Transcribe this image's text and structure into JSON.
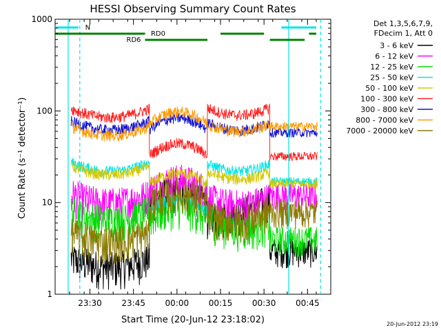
{
  "chart_data": {
    "type": "line",
    "title": "HESSI Observing Summary Count Rates",
    "xlabel": "Start Time (20-Jun-12 23:18:02)",
    "ylabel": "Count Rate (s⁻¹ detector⁻¹)",
    "yscale": "log",
    "ylim": [
      1,
      1000
    ],
    "x_unit": "minutes after 23:18:02",
    "xlim": [
      0,
      95
    ],
    "x_tick_labels": [
      "23:30",
      "23:45",
      "00:00",
      "00:15",
      "00:30",
      "00:45"
    ],
    "x_tick_values": [
      12,
      27,
      42,
      57,
      72,
      87
    ],
    "y_tick_labels": [
      "1",
      "10",
      "100",
      "1000"
    ],
    "y_tick_values": [
      1,
      10,
      100,
      1000
    ],
    "grid": false,
    "legend_placement": "right",
    "legend_header": [
      "Det 1,3,5,6,7,9,",
      "FDecim 1, Att 0"
    ],
    "timestamp": "20-Jun-2012 23:19",
    "segments": [
      [
        5.5,
        32.5
      ],
      [
        32.5,
        52.5
      ],
      [
        52.5,
        74
      ],
      [
        74,
        90.5
      ]
    ],
    "series": [
      {
        "name": "3 - 6 keV",
        "color": "#000000",
        "values": [
          2,
          2,
          13.5,
          6,
          9.5,
          3
        ]
      },
      {
        "name": "6 - 12 keV",
        "color": "#ff00ff",
        "values": [
          10,
          10,
          18,
          9.5,
          9.5,
          12
        ]
      },
      {
        "name": "12 - 25 keV",
        "color": "#00dd00",
        "values": [
          6.5,
          6.5,
          9,
          5.5,
          5,
          4
        ]
      },
      {
        "name": "25 - 50 keV",
        "color": "#00e5e5",
        "values": [
          22,
          22,
          11,
          22,
          22,
          17
        ]
      },
      {
        "name": "50 - 100 keV",
        "color": "#d4c800",
        "values": [
          20,
          20,
          21,
          18,
          18,
          16
        ]
      },
      {
        "name": "100 - 300 keV",
        "color": "#ff2020",
        "values": [
          85,
          85,
          44,
          90,
          90,
          32
        ]
      },
      {
        "name": "300 - 800 keV",
        "color": "#1010d0",
        "values": [
          62,
          62,
          84,
          62,
          62,
          58
        ]
      },
      {
        "name": "800 - 7000 keV",
        "color": "#ff9900",
        "values": [
          54,
          54,
          98,
          60,
          60,
          68
        ]
      },
      {
        "name": "7000 - 20000 keV",
        "color": "#8a7a00",
        "values": [
          3.8,
          3.8,
          13,
          6,
          7,
          8
        ]
      }
    ],
    "status_bars": [
      {
        "label": "N",
        "color": "#00e5e5",
        "level": "top",
        "ranges": [
          [
            0,
            8
          ],
          [
            78,
            90
          ]
        ]
      },
      {
        "label": "RD0",
        "color": "#008000",
        "level": "middle",
        "ranges": [
          [
            0,
            31
          ],
          [
            57,
            72
          ],
          [
            87.5,
            90
          ]
        ]
      },
      {
        "label": "RD6",
        "color": "#008000",
        "level": "lower",
        "ranges": [
          [
            31,
            52.5
          ],
          [
            74,
            86
          ]
        ]
      }
    ],
    "vertical_markers": [
      {
        "color": "#00e5e5",
        "style": "solid",
        "x": 4.5
      },
      {
        "color": "#00e5e5",
        "style": "dashed",
        "x": 8.5
      },
      {
        "color": "#00e5e5",
        "style": "solid",
        "x": 80.5
      },
      {
        "color": "#00e5e5",
        "style": "dashed",
        "x": 91.5
      }
    ]
  }
}
